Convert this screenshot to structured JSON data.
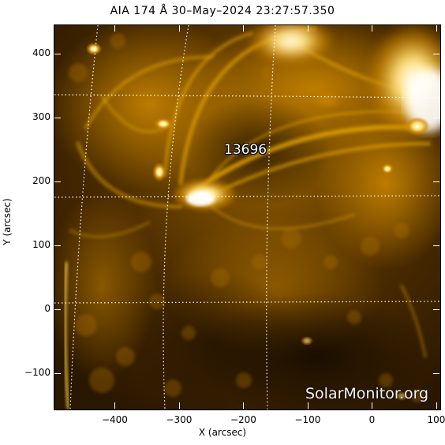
{
  "title": "AIA 174 Å 30–May–2024 23:27:57.350",
  "xaxis": {
    "label": "X (arcsec)",
    "ticks": [
      "−400",
      "−300",
      "−200",
      "−100",
      "0",
      "100"
    ],
    "tick_values": [
      -400,
      -300,
      -200,
      -100,
      0,
      100
    ],
    "range": [
      -495,
      105
    ]
  },
  "yaxis": {
    "label": "Y (arcsec)",
    "ticks": [
      "−100",
      "0",
      "100",
      "200",
      "300",
      "400"
    ],
    "tick_values": [
      -100,
      0,
      100,
      200,
      300,
      400
    ],
    "range": [
      -155,
      445
    ]
  },
  "region": {
    "label": "13696"
  },
  "watermark": "SolarMonitor.org",
  "colors": {
    "sun_dark": "#2a1800",
    "sun_mid": "#8a5a00",
    "sun_bright": "#ffd24a",
    "sun_white": "#ffffff",
    "grid": "#ffffff"
  }
}
